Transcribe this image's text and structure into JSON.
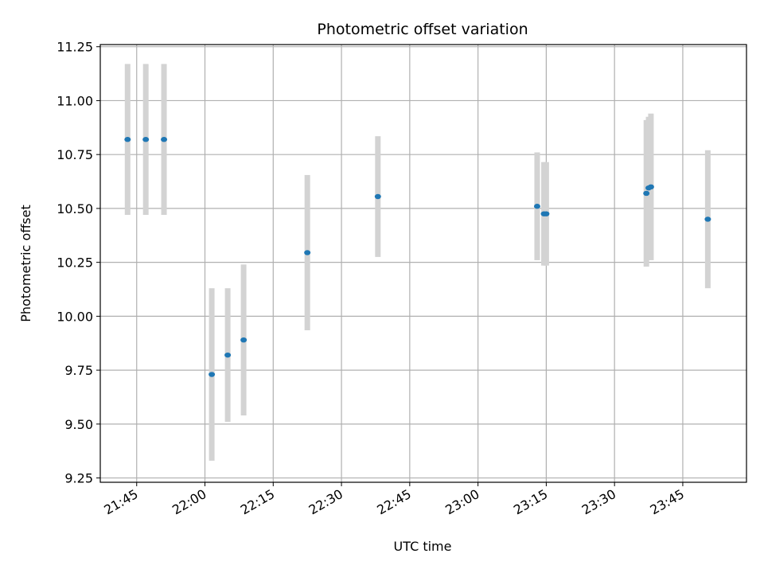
{
  "chart_data": {
    "type": "scatter",
    "title": "Photometric offset variation",
    "xlabel": "UTC time",
    "ylabel": "Photometric offset",
    "xlim": [
      "21:37",
      "23:59"
    ],
    "ylim": [
      9.23,
      11.26
    ],
    "x_ticks": [
      "21:45",
      "22:00",
      "22:15",
      "22:30",
      "22:45",
      "23:00",
      "23:15",
      "23:30",
      "23:45"
    ],
    "y_ticks": [
      "9.25",
      "9.50",
      "9.75",
      "10.00",
      "10.25",
      "10.50",
      "10.75",
      "11.00",
      "11.25"
    ],
    "grid": true,
    "colors": {
      "point": "#1f77b4",
      "errorbar": "#d3d3d3",
      "grid": "#b0b0b0"
    },
    "points": [
      {
        "x": "21:43:00",
        "y": 10.82,
        "err": 0.35
      },
      {
        "x": "21:47:00",
        "y": 10.82,
        "err": 0.35
      },
      {
        "x": "21:51:00",
        "y": 10.82,
        "err": 0.35
      },
      {
        "x": "22:01:30",
        "y": 9.73,
        "err": 0.4
      },
      {
        "x": "22:05:00",
        "y": 9.82,
        "err": 0.31
      },
      {
        "x": "22:08:30",
        "y": 9.89,
        "err": 0.35
      },
      {
        "x": "22:22:30",
        "y": 10.295,
        "err": 0.36
      },
      {
        "x": "22:38:00",
        "y": 10.555,
        "err": 0.28
      },
      {
        "x": "23:13:00",
        "y": 10.51,
        "err": 0.25
      },
      {
        "x": "23:14:30",
        "y": 10.475,
        "err": 0.24
      },
      {
        "x": "23:15:00",
        "y": 10.475,
        "err": 0.24
      },
      {
        "x": "23:37:00",
        "y": 10.57,
        "err": 0.34
      },
      {
        "x": "23:37:30",
        "y": 10.595,
        "err": 0.33
      },
      {
        "x": "23:38:00",
        "y": 10.6,
        "err": 0.34
      },
      {
        "x": "23:50:30",
        "y": 10.45,
        "err": 0.32
      }
    ]
  }
}
